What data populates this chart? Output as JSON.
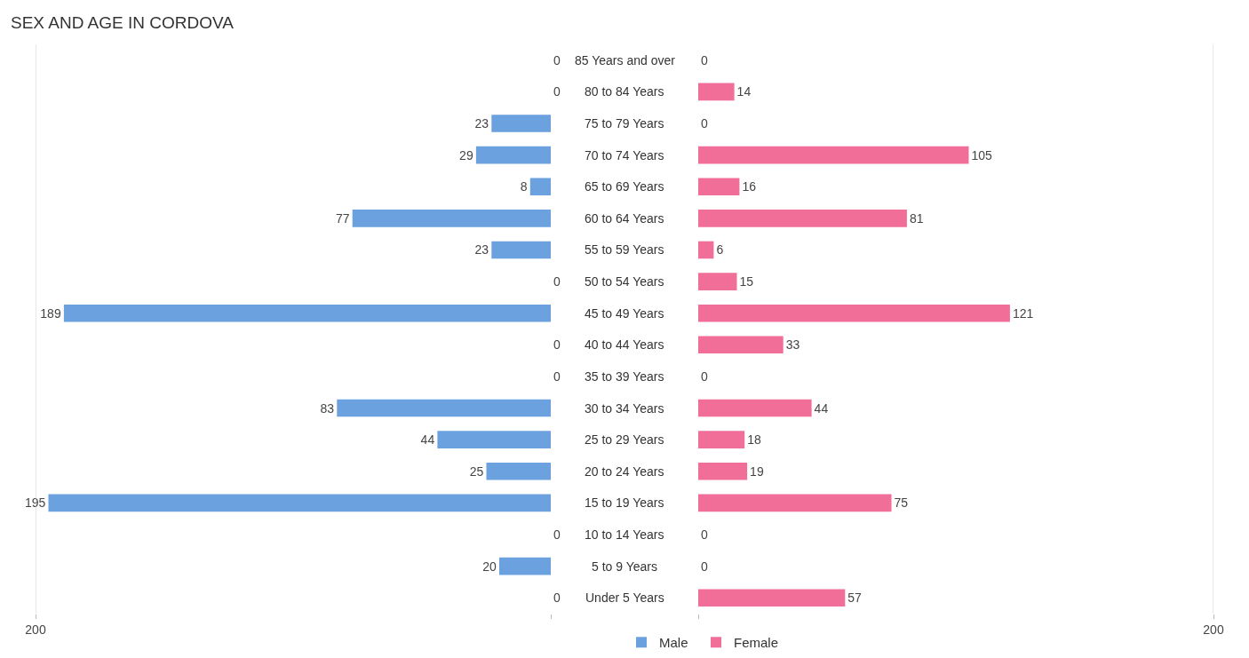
{
  "chart_data": [
    {
      "type": "bar",
      "title": "SEX AND AGE IN CORDOVA",
      "orientation": "horizontal",
      "categories": [
        "85 Years and over",
        "80 to 84 Years",
        "75 to 79 Years",
        "70 to 74 Years",
        "65 to 69 Years",
        "60 to 64 Years",
        "55 to 59 Years",
        "50 to 54 Years",
        "45 to 49 Years",
        "40 to 44 Years",
        "35 to 39 Years",
        "30 to 34 Years",
        "25 to 29 Years",
        "20 to 24 Years",
        "15 to 19 Years",
        "10 to 14 Years",
        "5 to 9 Years",
        "Under 5 Years"
      ],
      "series": [
        {
          "name": "Male",
          "color": "#6aa1de",
          "values": [
            0,
            0,
            23,
            29,
            8,
            77,
            23,
            0,
            189,
            0,
            0,
            83,
            44,
            25,
            195,
            0,
            20,
            0
          ]
        }
      ],
      "xlim": [
        200,
        0
      ],
      "xticks": [
        200,
        {
          "value": 0,
          "label": null
        }
      ],
      "data_labels": true,
      "legend": "bottom",
      "grid": false
    },
    {
      "type": "bar",
      "orientation": "horizontal",
      "categories": [
        null,
        null,
        null,
        null,
        null,
        null,
        null,
        null,
        null,
        null,
        null,
        null,
        null,
        null,
        null,
        null,
        null,
        null
      ],
      "series": [
        {
          "name": "Female",
          "color": "#f06e98",
          "values": [
            0,
            14,
            0,
            105,
            16,
            81,
            6,
            15,
            121,
            33,
            0,
            44,
            18,
            19,
            75,
            0,
            0,
            57
          ]
        }
      ],
      "xlim": [
        0,
        200
      ],
      "xticks": [
        {
          "value": 0,
          "label": null
        },
        200
      ],
      "data_labels": true,
      "legend": "bottom",
      "grid": false,
      "tick_labels": "x"
    }
  ]
}
